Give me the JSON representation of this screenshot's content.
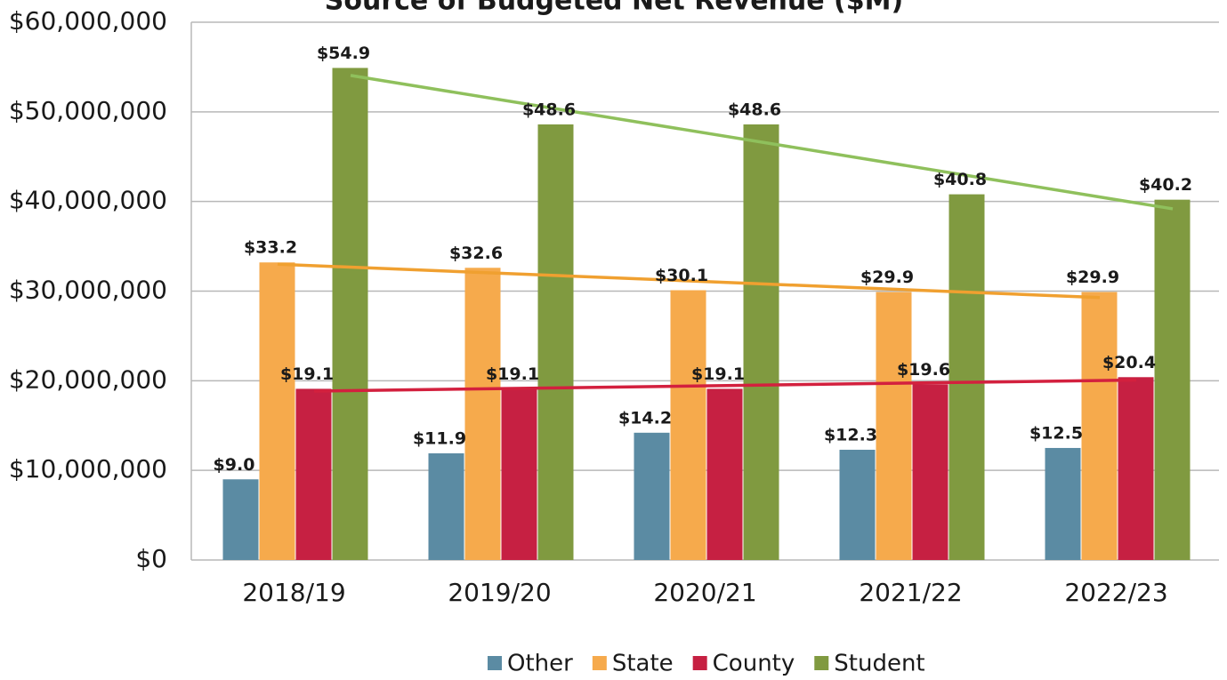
{
  "chart_data": {
    "type": "bar",
    "title": "Source of Budgeted Net Revenue ($M)",
    "categories": [
      "2018/19",
      "2019/20",
      "2020/21",
      "2021/22",
      "2022/23"
    ],
    "series": [
      {
        "name": "Other",
        "color": "#5b8ba3",
        "values": [
          9000000,
          11900000,
          14200000,
          12300000,
          12500000
        ],
        "value_labels": [
          "$9.0",
          "$11.9",
          "$14.2",
          "$12.3",
          "$12.5"
        ]
      },
      {
        "name": "State",
        "color": "#f6aa4c",
        "values": [
          33200000,
          32600000,
          30100000,
          29900000,
          29900000
        ],
        "value_labels": [
          "$33.2",
          "$32.6",
          "$30.1",
          "$29.9",
          "$29.9"
        ],
        "trendline": true,
        "trend_color": "#f0a030"
      },
      {
        "name": "County",
        "color": "#c62042",
        "values": [
          19100000,
          19100000,
          19100000,
          19600000,
          20400000
        ],
        "value_labels": [
          "$19.1",
          "$19.1",
          "$19.1",
          "$19.6",
          "$20.4"
        ],
        "trendline": true,
        "trend_color": "#d3203e"
      },
      {
        "name": "Student",
        "color": "#809a40",
        "values": [
          54900000,
          48600000,
          48600000,
          40800000,
          40200000
        ],
        "value_labels": [
          "$54.9",
          "$48.6",
          "$48.6",
          "$40.8",
          "$40.2"
        ],
        "trendline": true,
        "trend_color": "#8fc05c"
      }
    ],
    "ylim": [
      0,
      60000000
    ],
    "yticks": [
      {
        "value": 0,
        "label": "$0"
      },
      {
        "value": 10000000,
        "label": "$10,000,000"
      },
      {
        "value": 20000000,
        "label": "$20,000,000"
      },
      {
        "value": 30000000,
        "label": "$30,000,000"
      },
      {
        "value": 40000000,
        "label": "$40,000,000"
      },
      {
        "value": 50000000,
        "label": "$50,000,000"
      },
      {
        "value": 60000000,
        "label": "$60,000,000"
      }
    ],
    "grid": true,
    "legend": "bottom"
  }
}
